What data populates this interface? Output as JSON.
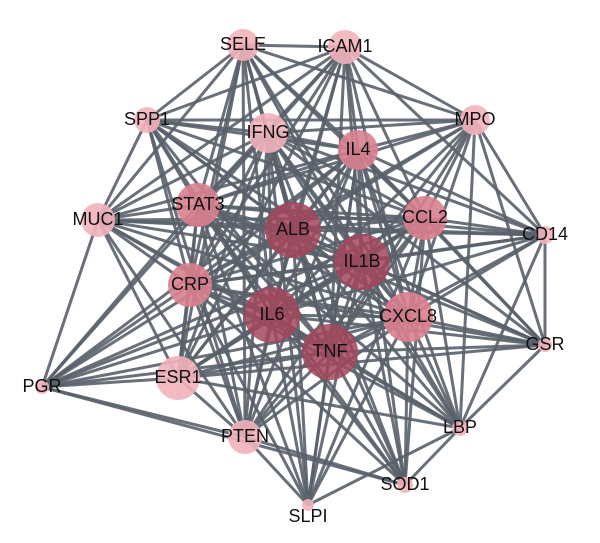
{
  "nodes": [
    {
      "label": "SELE"
    },
    {
      "label": "ICAM1"
    },
    {
      "label": "SPP1"
    },
    {
      "label": "IFNG"
    },
    {
      "label": "IL4"
    },
    {
      "label": "MPO"
    },
    {
      "label": "STAT3"
    },
    {
      "label": "CCL2"
    },
    {
      "label": "MUC1"
    },
    {
      "label": "CD14"
    },
    {
      "label": "ALB"
    },
    {
      "label": "IL1B"
    },
    {
      "label": "CRP"
    },
    {
      "label": "IL6"
    },
    {
      "label": "CXCL8"
    },
    {
      "label": "GSR"
    },
    {
      "label": "TNF"
    },
    {
      "label": "PGR"
    },
    {
      "label": "ESR1"
    },
    {
      "label": "LBP"
    },
    {
      "label": "PTEN"
    },
    {
      "label": "SOD1"
    },
    {
      "label": "SLPI"
    }
  ]
}
